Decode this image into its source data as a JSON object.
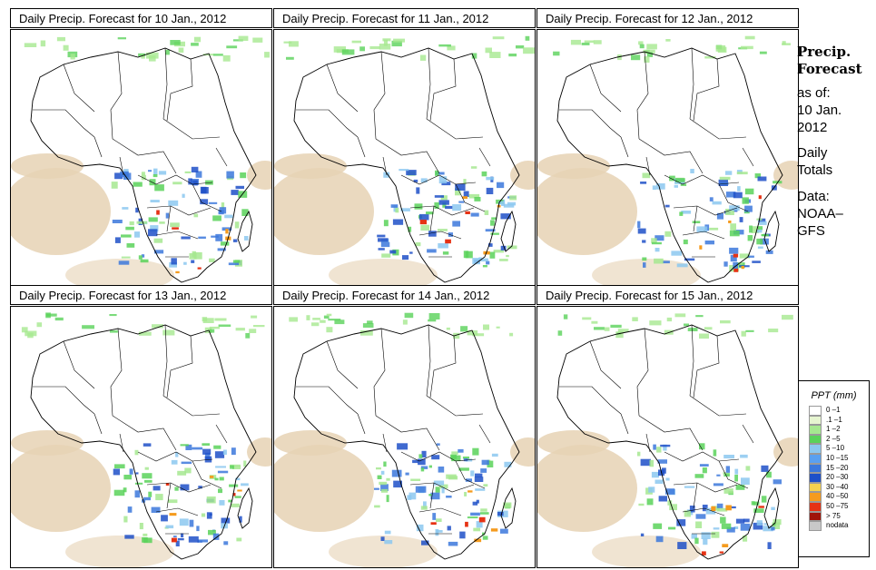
{
  "panels": [
    {
      "title": "Daily Precip. Forecast for  10 Jan., 2012"
    },
    {
      "title": "Daily Precip. Forecast for  11 Jan., 2012"
    },
    {
      "title": "Daily Precip. Forecast for  12 Jan., 2012"
    },
    {
      "title": "Daily Precip. Forecast for  13 Jan., 2012"
    },
    {
      "title": "Daily Precip. Forecast for  14 Jan., 2012"
    },
    {
      "title": "Daily Precip. Forecast for  15 Jan., 2012"
    }
  ],
  "sidebar": {
    "heading1": "Precip.",
    "heading2": "Forecast",
    "asof_label": "as of:",
    "asof_date1": "10 Jan.",
    "asof_date2": "2012",
    "totals1": "Daily",
    "totals2": "Totals",
    "source1": "Data:",
    "source2": "NOAA–",
    "source3": "GFS"
  },
  "legend": {
    "title": "PPT (mm)",
    "items": [
      {
        "label": "0 –1",
        "color": "#ffffff"
      },
      {
        "label": ".1 –1",
        "color": "#e6f5d0"
      },
      {
        "label": "1 –2",
        "color": "#a6e890"
      },
      {
        "label": "2 –5",
        "color": "#5ad25a"
      },
      {
        "label": "5 –10",
        "color": "#8cc8f0"
      },
      {
        "label": "10 –15",
        "color": "#5aa0f0"
      },
      {
        "label": "15 –20",
        "color": "#3c78dc"
      },
      {
        "label": "20 –30",
        "color": "#1e50c8"
      },
      {
        "label": "30 –40",
        "color": "#f5d250"
      },
      {
        "label": "40 –50",
        "color": "#f59b1e"
      },
      {
        "label": "50 –75",
        "color": "#e63214"
      },
      {
        "label": "> 75",
        "color": "#a0140a"
      },
      {
        "label": "nodata",
        "color": "#c8c8c8"
      }
    ]
  },
  "colors": {
    "sand": "#e6d2b4",
    "light_green": "#a6e890",
    "green": "#5ad25a",
    "light_blue": "#8cc8f0",
    "blue": "#3c78dc",
    "dark_blue": "#1e50c8",
    "red": "#e63214",
    "orange": "#f59b1e"
  }
}
